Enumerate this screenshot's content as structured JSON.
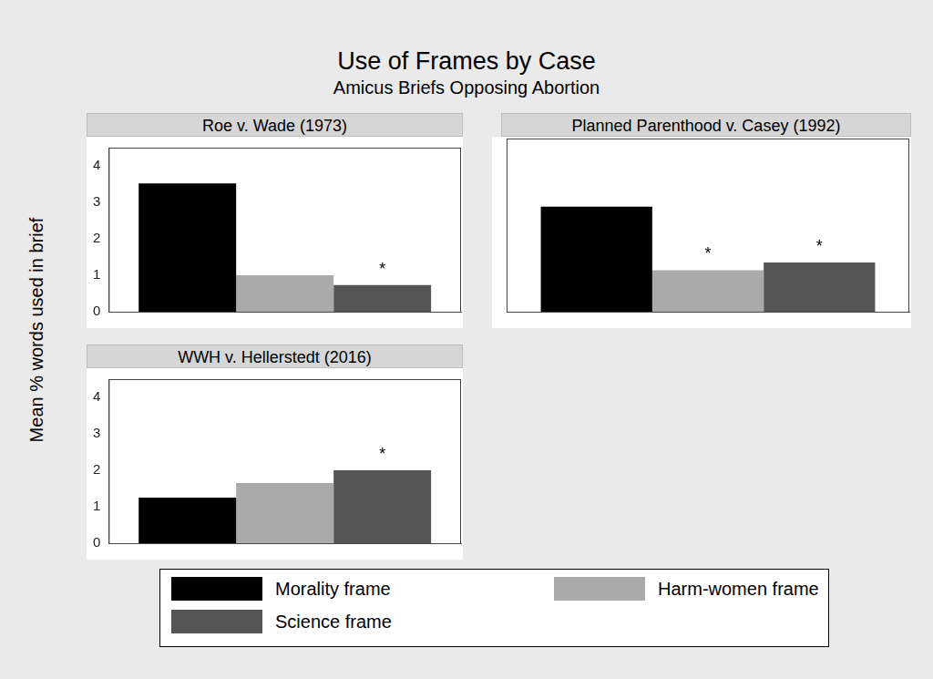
{
  "chart_data": {
    "type": "bar",
    "title": "Use of Frames by Case",
    "subtitle": "Amicus Briefs Opposing Abortion",
    "y_label": "Mean % words used in brief",
    "categories": [
      "Roe v. Wade (1973)",
      "Planned Parenthood v. Casey (1992)",
      "WWH v. Hellerstedt (2016)"
    ],
    "series": [
      {
        "name": "Morality frame",
        "color": "#000000",
        "values": [
          3.52,
          2.73,
          1.25
        ]
      },
      {
        "name": "Harm-women frame",
        "color": "#aaaaaa",
        "values": [
          1.0,
          1.08,
          1.65
        ],
        "annotations": [
          null,
          "*",
          null
        ]
      },
      {
        "name": "Science frame",
        "color": "#555555",
        "values": [
          0.73,
          1.28,
          2.0
        ],
        "annotations": [
          "*",
          "*",
          "*"
        ]
      }
    ],
    "ylim": [
      0,
      4.5
    ],
    "yticks": [
      0,
      1,
      2,
      3,
      4
    ],
    "grid": false,
    "legend": "bottom",
    "tick_labels": "y"
  }
}
